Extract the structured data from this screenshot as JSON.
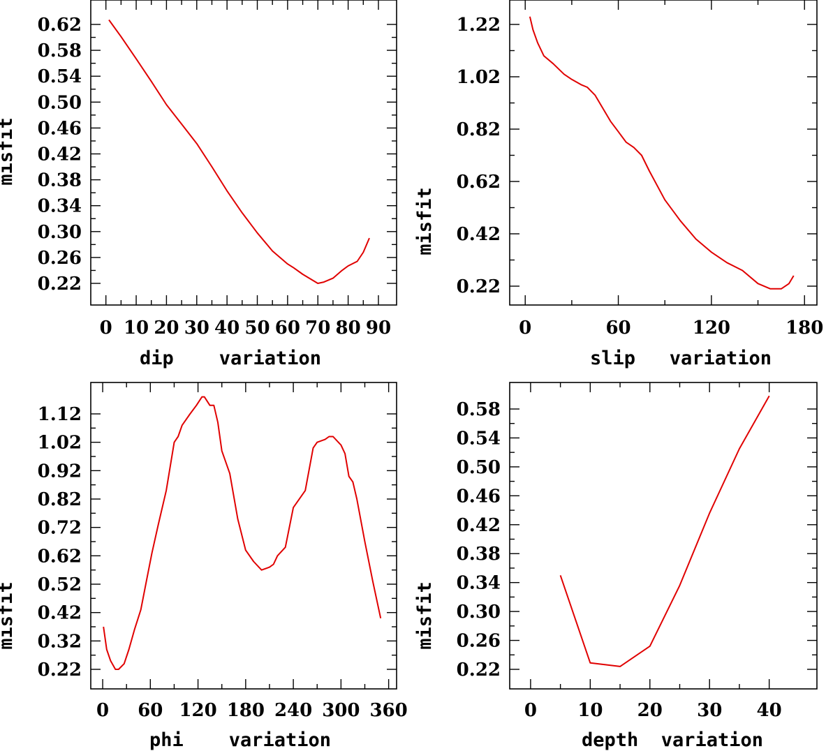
{
  "chart_data": [
    {
      "type": "line",
      "xlabel": "dip    variation",
      "ylabel": "misfit",
      "xticks": [
        0,
        10,
        20,
        30,
        40,
        50,
        60,
        70,
        80,
        90
      ],
      "xtick_labels": [
        "0",
        "10",
        "20",
        "30",
        "40",
        "50",
        "60",
        "70",
        "80",
        "90"
      ],
      "yticks": [
        0.22,
        0.26,
        0.3,
        0.34,
        0.38,
        0.42,
        0.46,
        0.5,
        0.54,
        0.58,
        0.62
      ],
      "ytick_labels": [
        "0.22",
        "0.26",
        "0.30",
        "0.34",
        "0.38",
        "0.42",
        "0.46",
        "0.50",
        "0.54",
        "0.58",
        "0.62"
      ],
      "series": [
        {
          "name": "dip",
          "color": "#e00000",
          "x": [
            1,
            5,
            10,
            15,
            20,
            25,
            30,
            35,
            40,
            45,
            50,
            55,
            60,
            62,
            65,
            70,
            72,
            75,
            78,
            80,
            83,
            85,
            87
          ],
          "y": [
            0.627,
            0.601,
            0.567,
            0.532,
            0.496,
            0.466,
            0.436,
            0.4,
            0.363,
            0.329,
            0.298,
            0.27,
            0.25,
            0.244,
            0.234,
            0.22,
            0.222,
            0.228,
            0.24,
            0.247,
            0.254,
            0.268,
            0.29
          ]
        }
      ]
    },
    {
      "type": "line",
      "xlabel": "slip   variation",
      "ylabel": "misfit",
      "xticks": [
        0,
        60,
        120,
        180
      ],
      "xtick_labels": [
        "0",
        "60",
        "120",
        "180"
      ],
      "yticks": [
        0.22,
        0.42,
        0.62,
        0.82,
        1.02,
        1.22
      ],
      "ytick_labels": [
        "0.22",
        "0.42",
        "0.62",
        "0.82",
        "1.02",
        "1.22"
      ],
      "series": [
        {
          "name": "slip",
          "color": "#e00000",
          "x": [
            3,
            5,
            8,
            12,
            18,
            25,
            30,
            36,
            40,
            45,
            50,
            55,
            60,
            65,
            70,
            75,
            80,
            90,
            100,
            110,
            120,
            130,
            140,
            150,
            158,
            165,
            170,
            173
          ],
          "y": [
            1.25,
            1.2,
            1.15,
            1.1,
            1.07,
            1.03,
            1.01,
            0.99,
            0.98,
            0.95,
            0.9,
            0.85,
            0.81,
            0.77,
            0.75,
            0.72,
            0.66,
            0.55,
            0.47,
            0.4,
            0.35,
            0.31,
            0.28,
            0.23,
            0.21,
            0.21,
            0.23,
            0.26
          ]
        }
      ]
    },
    {
      "type": "line",
      "xlabel": "phi    variation",
      "ylabel": "misfit",
      "xticks": [
        0,
        60,
        120,
        180,
        240,
        300,
        360
      ],
      "xtick_labels": [
        "0",
        "60",
        "120",
        "180",
        "240",
        "300",
        "360"
      ],
      "yticks": [
        0.22,
        0.32,
        0.42,
        0.52,
        0.62,
        0.72,
        0.82,
        0.92,
        1.02,
        1.12
      ],
      "ytick_labels": [
        "0.22",
        "0.32",
        "0.42",
        "0.52",
        "0.62",
        "0.72",
        "0.82",
        "0.92",
        "1.02",
        "1.12"
      ],
      "series": [
        {
          "name": "phi",
          "color": "#e00000",
          "x": [
            1,
            5,
            10,
            16,
            20,
            27,
            33,
            40,
            48,
            55,
            62,
            70,
            80,
            90,
            95,
            100,
            110,
            118,
            125,
            128,
            135,
            140,
            145,
            150,
            160,
            170,
            180,
            190,
            200,
            210,
            215,
            220,
            230,
            240,
            250,
            255,
            265,
            270,
            280,
            285,
            290,
            300,
            305,
            310,
            315,
            320,
            330,
            340,
            350
          ],
          "y": [
            0.37,
            0.29,
            0.25,
            0.22,
            0.22,
            0.24,
            0.29,
            0.36,
            0.43,
            0.53,
            0.63,
            0.73,
            0.85,
            1.02,
            1.04,
            1.08,
            1.12,
            1.15,
            1.18,
            1.18,
            1.15,
            1.15,
            1.09,
            0.99,
            0.91,
            0.75,
            0.64,
            0.6,
            0.57,
            0.58,
            0.59,
            0.62,
            0.65,
            0.79,
            0.83,
            0.85,
            1.0,
            1.02,
            1.03,
            1.04,
            1.04,
            1.01,
            0.98,
            0.9,
            0.88,
            0.82,
            0.67,
            0.53,
            0.4
          ]
        }
      ]
    },
    {
      "type": "line",
      "xlabel": "depth  variation",
      "ylabel": "misfit",
      "xticks": [
        0,
        10,
        20,
        30,
        40
      ],
      "xtick_labels": [
        "0",
        "10",
        "20",
        "30",
        "40"
      ],
      "yticks": [
        0.22,
        0.26,
        0.3,
        0.34,
        0.38,
        0.42,
        0.46,
        0.5,
        0.54,
        0.58
      ],
      "ytick_labels": [
        "0.22",
        "0.26",
        "0.30",
        "0.34",
        "0.38",
        "0.42",
        "0.46",
        "0.50",
        "0.54",
        "0.58"
      ],
      "series": [
        {
          "name": "depth",
          "color": "#e00000",
          "x": [
            5,
            10,
            15,
            20,
            25,
            30,
            35,
            40
          ],
          "y": [
            0.35,
            0.229,
            0.224,
            0.252,
            0.336,
            0.436,
            0.525,
            0.598
          ]
        }
      ]
    }
  ]
}
